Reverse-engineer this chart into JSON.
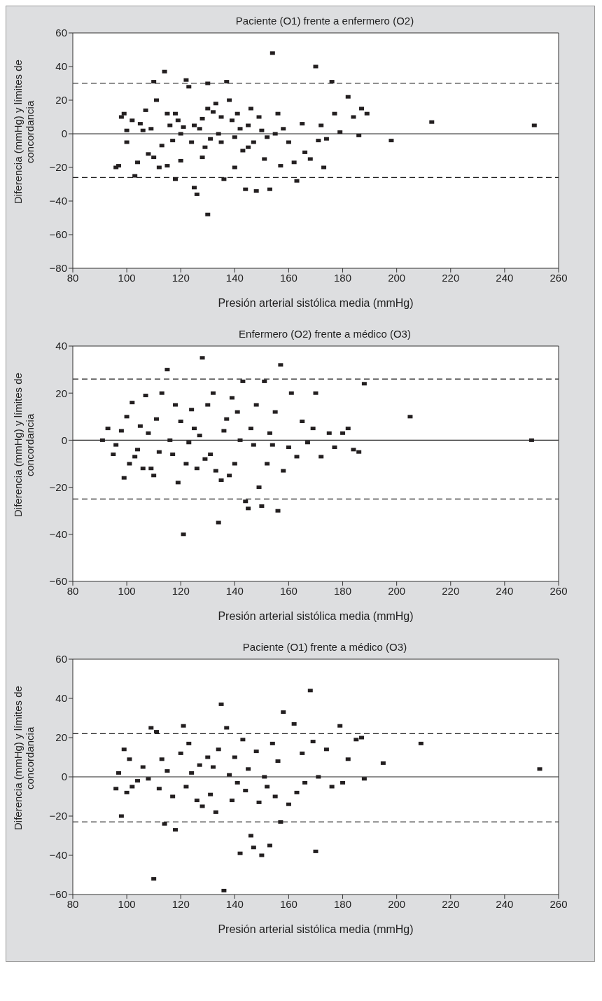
{
  "chart_data": [
    {
      "type": "scatter",
      "title": "Paciente (O1) frente a enfermero (O2)",
      "xlabel": "Presión arterial sistólica media (mmHg)",
      "ylabel": "Diferencia (mmHg) y límites de concordancia",
      "marker": "square",
      "grid": false,
      "xlim": [
        80,
        260
      ],
      "xticks": [
        80,
        100,
        120,
        140,
        160,
        180,
        200,
        220,
        240,
        260
      ],
      "ylim": [
        -80,
        60
      ],
      "yticks": [
        -80,
        -60,
        -40,
        -20,
        0,
        20,
        40,
        60
      ],
      "ref_lines": [
        {
          "axis": "y",
          "value": 30,
          "line_style": "dashed"
        },
        {
          "axis": "y",
          "value": 0,
          "line_style": "solid"
        },
        {
          "axis": "y",
          "value": -26,
          "line_style": "dashed"
        }
      ],
      "series": [
        {
          "color": "#231f20",
          "x": [
            96,
            97,
            98,
            99,
            100,
            100,
            102,
            103,
            104,
            105,
            106,
            107,
            108,
            109,
            110,
            111,
            112,
            113,
            114,
            115,
            116,
            117,
            118,
            119,
            120,
            121,
            122,
            123,
            124,
            125,
            126,
            127,
            128,
            129,
            130,
            130,
            131,
            132,
            133,
            134,
            135,
            136,
            137,
            138,
            139,
            140,
            141,
            142,
            143,
            144,
            145,
            146,
            147,
            148,
            149,
            150,
            151,
            152,
            153,
            154,
            155,
            156,
            157,
            158,
            160,
            162,
            163,
            165,
            166,
            168,
            170,
            171,
            172,
            173,
            174,
            176,
            177,
            179,
            182,
            184,
            186,
            187,
            189,
            198,
            213,
            251,
            110,
            115,
            120,
            125,
            128,
            135,
            140,
            145,
            118,
            130
          ],
          "values": [
            -20,
            -19,
            10,
            12,
            2,
            -5,
            8,
            -25,
            -17,
            6,
            2,
            14,
            -12,
            3,
            31,
            20,
            -20,
            -7,
            37,
            12,
            5,
            -4,
            -27,
            8,
            -16,
            4,
            32,
            28,
            -5,
            -32,
            -36,
            3,
            9,
            -8,
            30,
            -48,
            -3,
            13,
            18,
            0,
            -5,
            -27,
            31,
            20,
            8,
            -20,
            12,
            3,
            -10,
            -33,
            5,
            15,
            -5,
            -34,
            10,
            2,
            -15,
            -2,
            -33,
            48,
            0,
            12,
            -19,
            3,
            -5,
            -17,
            -28,
            6,
            -11,
            -15,
            40,
            -4,
            5,
            -20,
            -3,
            31,
            12,
            1,
            22,
            10,
            -1,
            15,
            12,
            -4,
            7,
            5,
            -14,
            -19,
            0,
            5,
            -14,
            10,
            -2,
            -8,
            12,
            15
          ]
        }
      ]
    },
    {
      "type": "scatter",
      "title": "Enfermero (O2) frente a médico (O3)",
      "xlabel": "Presión arterial sistólica media (mmHg)",
      "ylabel": "Diferencia (mmHg) y límites de concordancia",
      "marker": "square",
      "grid": false,
      "xlim": [
        80,
        260
      ],
      "xticks": [
        80,
        100,
        120,
        140,
        160,
        180,
        200,
        220,
        240,
        260
      ],
      "ylim": [
        -60,
        40
      ],
      "yticks": [
        -60,
        -40,
        -20,
        0,
        20,
        40
      ],
      "ref_lines": [
        {
          "axis": "y",
          "value": 26,
          "line_style": "dashed"
        },
        {
          "axis": "y",
          "value": 0,
          "line_style": "solid"
        },
        {
          "axis": "y",
          "value": -25,
          "line_style": "dashed"
        }
      ],
      "series": [
        {
          "color": "#231f20",
          "x": [
            91,
            93,
            95,
            96,
            98,
            99,
            100,
            101,
            102,
            103,
            104,
            105,
            106,
            107,
            108,
            109,
            110,
            111,
            112,
            113,
            115,
            116,
            117,
            118,
            119,
            120,
            121,
            122,
            123,
            124,
            125,
            126,
            127,
            128,
            129,
            130,
            131,
            132,
            133,
            134,
            135,
            136,
            137,
            138,
            139,
            140,
            141,
            142,
            143,
            144,
            145,
            146,
            147,
            148,
            149,
            150,
            151,
            152,
            153,
            154,
            155,
            156,
            157,
            158,
            160,
            161,
            163,
            165,
            167,
            169,
            170,
            172,
            175,
            177,
            180,
            182,
            184,
            186,
            188,
            205,
            250
          ],
          "values": [
            0,
            5,
            -6,
            -2,
            4,
            -16,
            10,
            -10,
            16,
            -7,
            -4,
            6,
            -12,
            19,
            3,
            -12,
            -15,
            9,
            -5,
            20,
            30,
            0,
            -6,
            15,
            -18,
            8,
            -40,
            -10,
            -1,
            13,
            5,
            -12,
            2,
            35,
            -8,
            15,
            -6,
            20,
            -13,
            -35,
            -17,
            4,
            9,
            -15,
            18,
            -10,
            12,
            0,
            25,
            -26,
            -29,
            5,
            -2,
            15,
            -20,
            -28,
            25,
            -10,
            3,
            -2,
            12,
            -30,
            32,
            -13,
            -3,
            20,
            -7,
            8,
            -1,
            5,
            20,
            -7,
            3,
            -3,
            3,
            5,
            -4,
            -5,
            24,
            10,
            0
          ]
        }
      ]
    },
    {
      "type": "scatter",
      "title": "Paciente (O1) frente a médico (O3)",
      "xlabel": "Presión arterial sistólica media (mmHg)",
      "ylabel": "Diferencia (mmHg) y límites de concordancia",
      "marker": "square",
      "grid": false,
      "xlim": [
        80,
        260
      ],
      "xticks": [
        80,
        100,
        120,
        140,
        160,
        180,
        200,
        220,
        240,
        260
      ],
      "ylim": [
        -60,
        60
      ],
      "yticks": [
        -60,
        -40,
        -20,
        0,
        20,
        40,
        60
      ],
      "ref_lines": [
        {
          "axis": "y",
          "value": 22,
          "line_style": "dashed"
        },
        {
          "axis": "y",
          "value": 0,
          "line_style": "solid"
        },
        {
          "axis": "y",
          "value": -23,
          "line_style": "dashed"
        }
      ],
      "series": [
        {
          "color": "#231f20",
          "x": [
            96,
            97,
            98,
            99,
            100,
            101,
            102,
            104,
            106,
            108,
            109,
            110,
            111,
            112,
            113,
            114,
            115,
            117,
            118,
            120,
            121,
            122,
            123,
            124,
            126,
            127,
            128,
            130,
            131,
            132,
            133,
            134,
            135,
            136,
            137,
            138,
            139,
            140,
            141,
            142,
            143,
            144,
            145,
            146,
            147,
            148,
            149,
            150,
            151,
            152,
            153,
            154,
            155,
            156,
            157,
            158,
            160,
            162,
            163,
            165,
            166,
            168,
            169,
            170,
            171,
            174,
            176,
            179,
            180,
            182,
            185,
            187,
            188,
            195,
            209,
            253
          ],
          "values": [
            -6,
            2,
            -20,
            14,
            -8,
            9,
            -5,
            -2,
            5,
            -1,
            25,
            -52,
            23,
            -6,
            9,
            -24,
            3,
            -10,
            -27,
            12,
            26,
            -5,
            17,
            2,
            -12,
            6,
            -15,
            10,
            -9,
            5,
            -18,
            14,
            37,
            -58,
            25,
            1,
            -12,
            10,
            -3,
            -39,
            19,
            -7,
            4,
            -30,
            -36,
            13,
            -13,
            -40,
            0,
            -5,
            -35,
            17,
            -10,
            8,
            -23,
            33,
            -14,
            27,
            -8,
            12,
            -3,
            44,
            18,
            -38,
            0,
            14,
            -5,
            26,
            -3,
            9,
            19,
            20,
            -1,
            7,
            17,
            4
          ]
        }
      ]
    }
  ]
}
